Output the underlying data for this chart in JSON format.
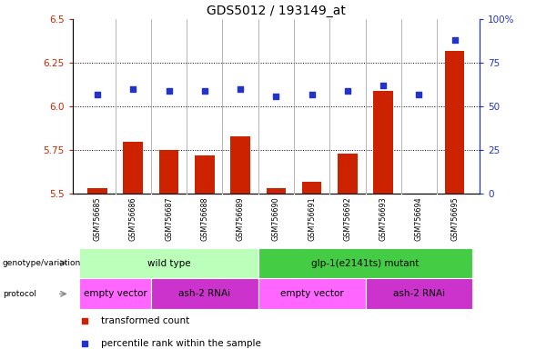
{
  "title": "GDS5012 / 193149_at",
  "samples": [
    "GSM756685",
    "GSM756686",
    "GSM756687",
    "GSM756688",
    "GSM756689",
    "GSM756690",
    "GSM756691",
    "GSM756692",
    "GSM756693",
    "GSM756694",
    "GSM756695"
  ],
  "red_values": [
    5.53,
    5.8,
    5.75,
    5.72,
    5.83,
    5.53,
    5.57,
    5.73,
    6.09,
    5.5,
    6.32
  ],
  "blue_pct": [
    57,
    60,
    59,
    59,
    60,
    56,
    57,
    59,
    62,
    57,
    88
  ],
  "ylim_left": [
    5.5,
    6.5
  ],
  "ylim_right": [
    0,
    100
  ],
  "yticks_left": [
    5.5,
    5.75,
    6.0,
    6.25,
    6.5
  ],
  "yticks_right": [
    0,
    25,
    50,
    75,
    100
  ],
  "red_color": "#cc2200",
  "blue_color": "#2233cc",
  "bar_bottom": 5.5,
  "geno_groups": [
    {
      "label": "wild type",
      "start": 0,
      "end": 4,
      "color": "#bbffbb"
    },
    {
      "label": "glp-1(e2141ts) mutant",
      "start": 5,
      "end": 10,
      "color": "#44cc44"
    }
  ],
  "proto_groups": [
    {
      "label": "empty vector",
      "start": 0,
      "end": 1,
      "color": "#ff66ff"
    },
    {
      "label": "ash-2 RNAi",
      "start": 2,
      "end": 4,
      "color": "#cc33cc"
    },
    {
      "label": "empty vector",
      "start": 5,
      "end": 7,
      "color": "#ff66ff"
    },
    {
      "label": "ash-2 RNAi",
      "start": 8,
      "end": 10,
      "color": "#cc33cc"
    }
  ],
  "title_fontsize": 10,
  "tick_fontsize": 7.5,
  "sample_fontsize": 5.8,
  "annotation_fontsize": 7.5,
  "legend_fontsize": 7.5,
  "legend_items": [
    {
      "color": "#cc2200",
      "label": "transformed count"
    },
    {
      "color": "#2233cc",
      "label": "percentile rank within the sample"
    }
  ],
  "xticklabel_bg": "#cccccc",
  "separator_color": "#999999",
  "grid_dotted_yvals": [
    5.75,
    6.0,
    6.25
  ]
}
